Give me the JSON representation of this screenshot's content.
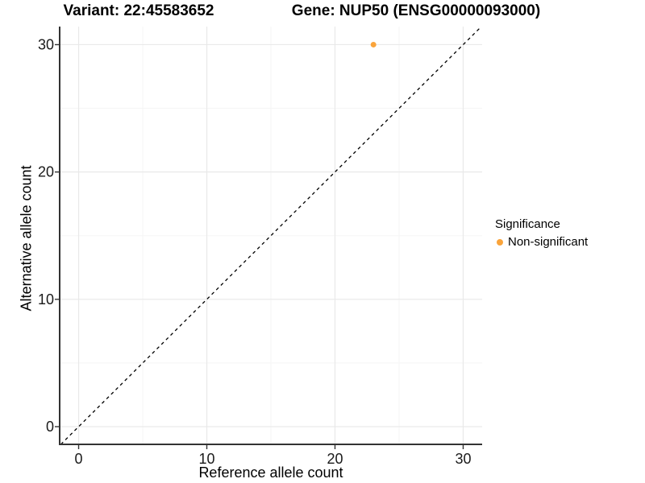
{
  "titles": {
    "left": "Variant: 22:45583652",
    "right": "Gene: NUP50 (ENSG00000093000)"
  },
  "chart_data": {
    "type": "scatter",
    "xlabel": "Reference allele count",
    "ylabel": "Alternative allele count",
    "xlim": [
      -1.48,
      31.48
    ],
    "ylim": [
      -1.39,
      31.42
    ],
    "x_ticks": [
      0,
      10,
      20,
      30
    ],
    "y_ticks": [
      0,
      10,
      20,
      30
    ],
    "x_minor_ticks": [
      5,
      15,
      25
    ],
    "y_minor_ticks": [
      5,
      15,
      25
    ],
    "grid": true,
    "series": [
      {
        "name": "Non-significant",
        "color": "#FAA43B",
        "points": [
          {
            "x": 23,
            "y": 30
          }
        ]
      }
    ],
    "reference_line": {
      "type": "abline",
      "slope": 1,
      "intercept": 0,
      "style": "dashed",
      "color": "#000000"
    },
    "legend": {
      "title": "Significance",
      "position": "right",
      "entries": [
        {
          "label": "Non-significant",
          "color": "#FAA43B"
        }
      ]
    }
  },
  "colors": {
    "background": "#FFFFFF",
    "axis_line": "#333333",
    "tick_text": "#1A1A1A",
    "grid_major": "#E9E9E9",
    "grid_minor": "#F5F5F5",
    "accent_orange": "#FAA43B"
  }
}
